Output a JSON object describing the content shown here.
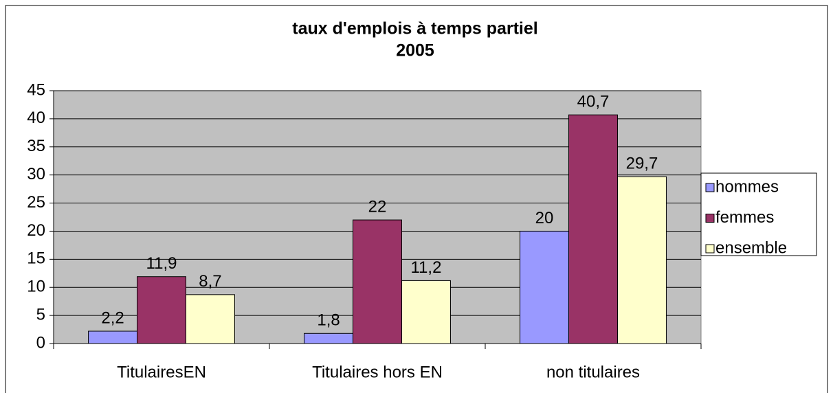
{
  "chart_data": {
    "type": "bar",
    "title": [
      "taux d'emplois à temps partiel",
      "2005"
    ],
    "categories": [
      "TitulairesEN",
      "Titulaires hors EN",
      "non titulaires"
    ],
    "series": [
      {
        "name": "hommes",
        "color": "#9999ff",
        "values": [
          2.2,
          1.8,
          20
        ],
        "value_labels": [
          "2,2",
          "1,8",
          "20"
        ]
      },
      {
        "name": "femmes",
        "color": "#993366",
        "values": [
          11.9,
          22,
          40.7
        ],
        "value_labels": [
          "11,9",
          "22",
          "40,7"
        ]
      },
      {
        "name": "ensemble",
        "color": "#ffffcc",
        "values": [
          8.7,
          11.2,
          29.7
        ],
        "value_labels": [
          "8,7",
          "11,2",
          "29,7"
        ]
      }
    ],
    "ylim": [
      0,
      45
    ],
    "yticks": [
      0,
      5,
      10,
      15,
      20,
      25,
      30,
      35,
      40,
      45
    ],
    "grid": true,
    "legend": "right",
    "plot_background": "#c0c0c0"
  }
}
